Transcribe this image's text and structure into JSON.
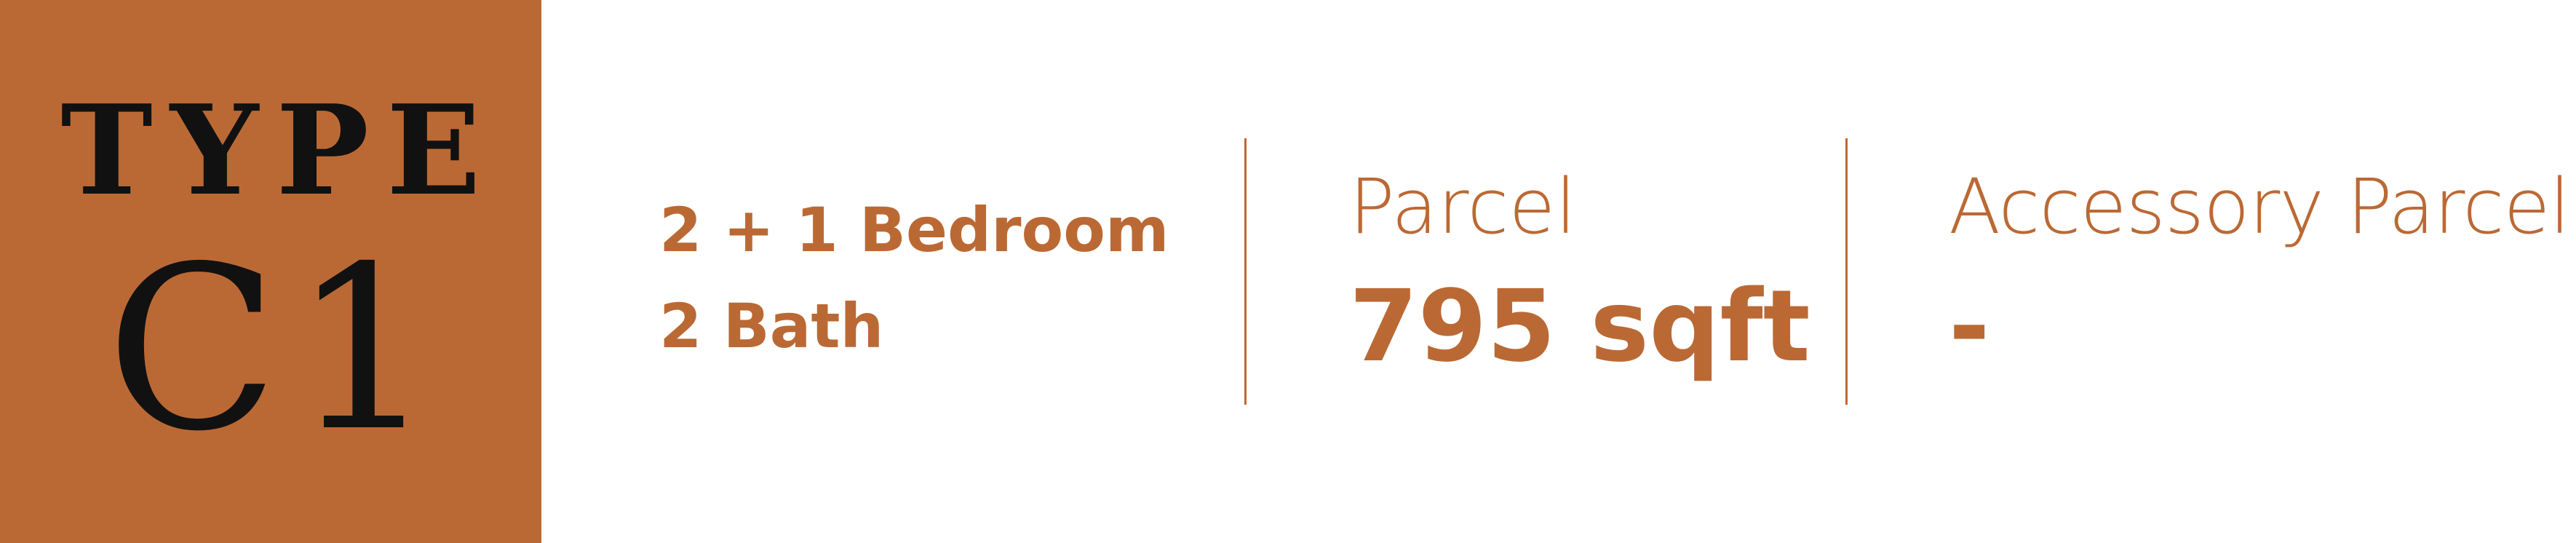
{
  "type_block": {
    "label": "TYPE",
    "code": "C1"
  },
  "rooms": {
    "bedrooms": "2 + 1 Bedroom",
    "baths": "2 Bath"
  },
  "parcel": {
    "label": "Parcel",
    "value": "795 sqft"
  },
  "accessory_parcel": {
    "label": "Accessory Parcel",
    "value": "-"
  },
  "colors": {
    "accent": "#bb6934",
    "text_dark": "#111111",
    "background": "#ffffff"
  }
}
